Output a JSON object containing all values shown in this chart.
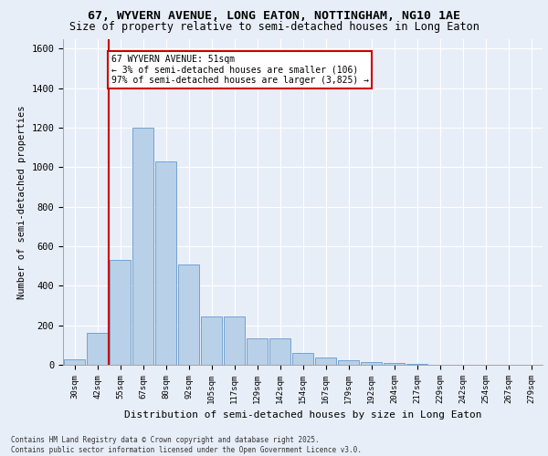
{
  "title_line1": "67, WYVERN AVENUE, LONG EATON, NOTTINGHAM, NG10 1AE",
  "title_line2": "Size of property relative to semi-detached houses in Long Eaton",
  "xlabel": "Distribution of semi-detached houses by size in Long Eaton",
  "ylabel": "Number of semi-detached properties",
  "annotation_title": "67 WYVERN AVENUE: 51sqm",
  "annotation_line2": "← 3% of semi-detached houses are smaller (106)",
  "annotation_line3": "97% of semi-detached houses are larger (3,825) →",
  "footer": "Contains HM Land Registry data © Crown copyright and database right 2025.\nContains public sector information licensed under the Open Government Licence v3.0.",
  "categories": [
    "30sqm",
    "42sqm",
    "55sqm",
    "67sqm",
    "80sqm",
    "92sqm",
    "105sqm",
    "117sqm",
    "129sqm",
    "142sqm",
    "154sqm",
    "167sqm",
    "179sqm",
    "192sqm",
    "204sqm",
    "217sqm",
    "229sqm",
    "242sqm",
    "254sqm",
    "267sqm",
    "279sqm"
  ],
  "values": [
    30,
    160,
    530,
    1200,
    1030,
    510,
    245,
    245,
    135,
    135,
    60,
    35,
    25,
    15,
    10,
    5,
    0,
    0,
    0,
    0,
    0
  ],
  "bar_color": "#b8d0e8",
  "bar_edge_color": "#6699cc",
  "ylim": [
    0,
    1650
  ],
  "yticks": [
    0,
    200,
    400,
    600,
    800,
    1000,
    1200,
    1400,
    1600
  ],
  "bg_color": "#e8eef8",
  "plot_bg_color": "#e8eef8",
  "grid_color": "#ffffff",
  "annotation_box_color": "#ffffff",
  "annotation_box_edge": "#cc0000",
  "vline_color": "#cc0000"
}
